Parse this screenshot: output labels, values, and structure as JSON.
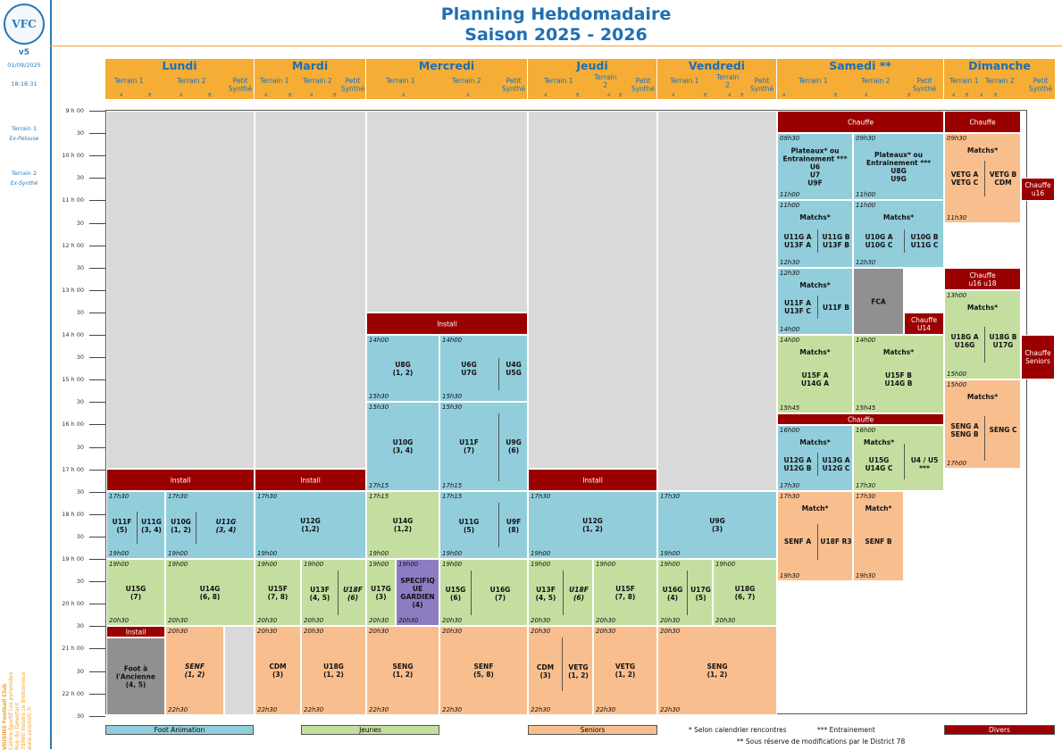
{
  "header": {
    "title": "Planning Hebdomadaire",
    "subtitle": "Saison 2025 - 2026"
  },
  "sidebar": {
    "logo_text": "VFC",
    "version": "v5",
    "date": "01/09/2025",
    "time": "18:18:31",
    "terrain1": "Terrain 1",
    "terrain1_type": "Ex-Pelouse",
    "terrain2": "Terrain 2",
    "terrain2_type": "Ex-Synthé",
    "club_name": "VOISINS Football Club",
    "address1": "Centre Sportif Les pyramides",
    "address2": "Rue du Tamerlant",
    "address3": "78960 Voisins Le Bretonneux",
    "website": "www.voisinsfc.fr"
  },
  "days": [
    "Lundi",
    "Mardi",
    "Mercredi",
    "Jeudi",
    "Vendredi",
    "Samedi **",
    "Dimanche"
  ],
  "terrains": {
    "t1": "Terrain 1",
    "t2": "Terrain 2",
    "t2b": "Terrain\n2",
    "petit": "Petit\nSynthé",
    "a": "A",
    "b": "B"
  },
  "times": [
    "9 h 00",
    "30",
    "10 h 00",
    "30",
    "11 h 00",
    "30",
    "12 h 00",
    "30",
    "13 h 00",
    "30",
    "14 h 00",
    "30",
    "15 h 00",
    "30",
    "16 h 00",
    "30",
    "17 h 00",
    "30",
    "18 h 00",
    "30",
    "19 h 00",
    "30",
    "20 h 00",
    "30",
    "21 h 00",
    "30",
    "22 h 00",
    "30"
  ],
  "legend": {
    "foot_animation": "Foot Animation",
    "jeunes": "Jeunes",
    "seniors": "Seniors",
    "divers": "Divers",
    "note1": "* Selon calendrier rencontres",
    "note2": "*** Entrainement",
    "note3": "** Sous réserve de modifications par le District 78"
  },
  "blocks": {
    "install": "Install",
    "chauffe": "Chauffe",
    "chauffe_u16": "Chauffe\nu16",
    "chauffe_u16u18": "Chauffe\nu16 u18",
    "chauffe_u14": "Chauffe\nU14",
    "chauffe_seniors": "Chauffe\nSeniors",
    "matchs": "Matchs*",
    "match": "Match*",
    "sam_plat1": "Plateaux* ou\nEntrainement ***\nU6\nU7\nU9F",
    "sam_plat2": "Plateaux* ou\nEntrainement ***\nU8G\nU9G",
    "sam_m1a": "U11G A\nU13F A",
    "sam_m1b": "U11G B\nU13F B",
    "sam_m1c": "U10G A\nU10G C",
    "sam_m1d": "U10G B\nU11G C",
    "sam_m2a": "U11F A\nU13F C",
    "sam_m2b": "U11F B",
    "fca": "FCA",
    "sam_m3a": "U15F A\nU14G A",
    "sam_m3b": "U15F B\nU14G B",
    "sam_m4a": "U12G A\nU12G B",
    "sam_m4b": "U13G A\nU12G C",
    "sam_m4c": "U15G\nU14G C",
    "sam_m4d": "U4 / U5\n***",
    "sam_m5a": "SENF A",
    "sam_m5b": "U18F R3",
    "sam_m5c": "SENF B",
    "dim_m1a": "VETG A\nVETG C",
    "dim_m1b": "VETG B\nCDM",
    "dim_m2a": "U18G A\nU16G",
    "dim_m2b": "U18G B\nU17G",
    "dim_m3a": "SENG A\nSENG B",
    "dim_m3b": "SENG C",
    "mer1a": "U8G\n(1, 2)",
    "mer1b": "U6G\nU7G",
    "mer1c": "U4G\nU5G",
    "mer2a": "U10G\n(3, 4)",
    "mer2b": "U11F\n(7)",
    "mer2c": "U9G\n(6)",
    "lun1a": "U11F\n(5)",
    "lun1b": "U11G\n(3, 4)",
    "lun1c": "U10G\n(1, 2)",
    "lun1d": "U11G\n(3, 4)",
    "mar1": "U12G\n(1,2)",
    "mer3a": "U14G\n(1,2)",
    "mer3b": "U11G\n(5)",
    "mer3c": "U9F\n(8)",
    "jeu1": "U12G\n(1, 2)",
    "ven1": "U9G\n(3)",
    "lun2a": "U15G\n(7)",
    "lun2b": "U14G\n(6, 8)",
    "mar2a": "U15F\n(7, 8)",
    "mar2b": "U13F\n(4, 5)",
    "mar2c": "U18F\n(6)",
    "mer4a": "U17G\n(3)",
    "mer4b": "SPECIFIQ\nUE\nGARDIEN\n(4)",
    "mer4c": "U15G\n(6)",
    "mer4d": "U16G\n(7)",
    "jeu2a": "U13F\n(4, 5)",
    "jeu2b": "U18F\n(6)",
    "jeu2c": "U15F\n(7, 8)",
    "ven2a": "U16G\n(4)",
    "ven2b": "U17G\n(5)",
    "ven2c": "U18G\n(6, 7)",
    "lun3a": "Foot à\nl'Ancienne\n(4, 5)",
    "lun3b": "SENF\n(1, 2)",
    "mar3a": "CDM\n(3)",
    "mar3b": "U18G\n(1, 2)",
    "mer5a": "SENG\n(1, 2)",
    "mer5b": "SENF\n(5, 8)",
    "jeu3a": "CDM\n(3)",
    "jeu3b": "VETG\n(1, 2)",
    "jeu3c": "VETG\n(1, 2)",
    "ven3": "SENG\n(1, 2)"
  },
  "t": {
    "0930": "09h30",
    "1100": "11h00",
    "1130": "11h30",
    "1230": "12h30",
    "1300": "13h00",
    "1400": "14h00",
    "1500": "15h00",
    "1530": "15h30",
    "1545": "15h45",
    "1600": "16h00",
    "1700": "17h00",
    "1715": "17h15",
    "1730": "17h30",
    "1900": "19h00",
    "1930": "19h30",
    "2030": "20h30",
    "2230": "22h30"
  }
}
